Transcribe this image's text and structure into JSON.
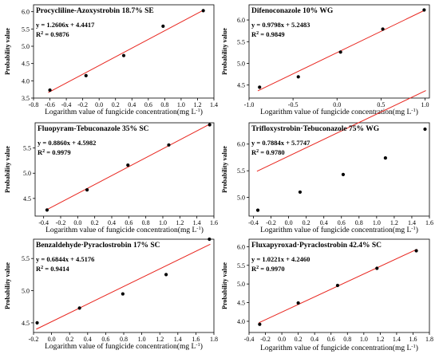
{
  "chart_data": [
    {
      "type": "scatter",
      "title": "Procycliline-Azoxystrobin 18.7% SE",
      "equation": "y = 1.2606x + 4.4417",
      "r2_label": "R",
      "r2_sup": "2",
      "r2_value": " = 0.9876",
      "xlabel": "Logarithm value of fungicide concentration(mg L",
      "xlabel_sup": "-1",
      "xlabel_end": ")",
      "ylabel": "Probability value",
      "xlim": [
        -0.8,
        1.4
      ],
      "ylim": [
        3.5,
        6.2
      ],
      "xticks": [
        "-0.8",
        "-0.6",
        "-0.4",
        "-0.2",
        "0.0",
        "0.2",
        "0.4",
        "0.6",
        "0.8",
        "1.0",
        "1.2",
        "1.4"
      ],
      "yticks": [
        "3.5",
        "4.0",
        "4.5",
        "5.0",
        "5.5",
        "6.0"
      ],
      "x": [
        -0.6,
        -0.16,
        0.3,
        0.78,
        1.27
      ],
      "y": [
        3.73,
        4.15,
        4.73,
        5.58,
        6.03
      ],
      "fit": {
        "slope": 1.2606,
        "intercept": 4.4417,
        "x_range": [
          -0.62,
          1.28
        ]
      }
    },
    {
      "type": "scatter",
      "title": "Difenoconazole 10% WG",
      "equation": "y = 0.9798x + 5.2483",
      "r2_label": "R",
      "r2_sup": "2",
      "r2_value": " = 0.9849",
      "xlabel": "Logarithm value of fungicide concentration(mg L",
      "xlabel_sup": "-1",
      "xlabel_end": ")",
      "ylabel": "Probability value",
      "xlim": [
        -1.0,
        1.05
      ],
      "ylim": [
        4.2,
        6.35
      ],
      "xticks": [
        "-1.0",
        "-0.5",
        "0.0",
        "0.5",
        "1.0"
      ],
      "yticks": [
        "4.5",
        "5.0",
        "5.5",
        "6.0"
      ],
      "x": [
        -0.88,
        -0.44,
        0.04,
        0.52,
        0.99
      ],
      "y": [
        4.45,
        4.69,
        5.26,
        5.79,
        6.23
      ],
      "fit": {
        "slope": 0.9798,
        "intercept": 5.2483,
        "x_range": [
          -0.9,
          1.0
        ]
      }
    },
    {
      "type": "scatter",
      "title": "Fluopyram-Tebuconazole 35% SC",
      "equation": "y = 0.8860x + 4.5982",
      "r2_label": "R",
      "r2_sup": "2",
      "r2_value": " = 0.9979",
      "xlabel": "Logarithm value of fungicide concentration(mg L",
      "xlabel_sup": "-1",
      "xlabel_end": ")",
      "ylabel": "Probability value",
      "xlim": [
        -0.5,
        1.6
      ],
      "ylim": [
        4.15,
        6.0
      ],
      "xticks": [
        "-0.4",
        "-0.2",
        "0.0",
        "0.2",
        "0.4",
        "0.6",
        "0.8",
        "1.0",
        "1.2",
        "1.4",
        "1.6"
      ],
      "yticks": [
        "4.5",
        "5.0",
        "5.5"
      ],
      "x": [
        -0.36,
        0.11,
        0.59,
        1.07,
        1.55
      ],
      "y": [
        4.27,
        4.67,
        5.16,
        5.56,
        5.96
      ],
      "fit": {
        "slope": 0.886,
        "intercept": 4.5982,
        "x_range": [
          -0.36,
          1.56
        ]
      }
    },
    {
      "type": "scatter",
      "title": "Trifloxystrobin·Tebuconazole 75% WG",
      "equation": "y = 0.7884x + 5.7747",
      "r2_label": "R",
      "r2_sup": "2",
      "r2_value": " = 0.9780",
      "xlabel": "Logarithm value of fungicide concentration(mg L",
      "xlabel_sup": "-1",
      "xlabel_end": ")",
      "ylabel": "Probability value",
      "xlim": [
        -0.45,
        1.6
      ],
      "ylim": [
        4.65,
        6.4
      ],
      "xticks": [
        "-0.4",
        "-0.2",
        "0.0",
        "0.2",
        "0.4",
        "0.6",
        "0.8",
        "1.0",
        "1.2",
        "1.4",
        "1.6"
      ],
      "yticks": [
        "5.0",
        "5.5",
        "6.0"
      ],
      "x": [
        -0.35,
        0.13,
        0.62,
        1.1,
        1.55
      ],
      "y": [
        4.76,
        5.1,
        5.43,
        5.74,
        6.28
      ],
      "fit": {
        "slope": 0.7884,
        "intercept": 5.7747,
        "x_range": [
          -0.36,
          1.56
        ]
      }
    },
    {
      "type": "scatter",
      "title": "Benzaldehyde·Pyraclostrobin 17% SC",
      "equation": "y = 0.6844x + 4.5176",
      "r2_label": "R",
      "r2_sup": "2",
      "r2_value": " = 0.9414",
      "xlabel": "Logarithm value of fungicide concentration(mg L",
      "xlabel_sup": "-1",
      "xlabel_end": ")",
      "ylabel": "Probability value",
      "xlim": [
        -0.2,
        1.8
      ],
      "ylim": [
        4.35,
        5.8
      ],
      "xticks": [
        "-0.2",
        "0.0",
        "0.2",
        "0.4",
        "0.6",
        "0.8",
        "1.0",
        "1.2",
        "1.4",
        "1.6",
        "1.8"
      ],
      "yticks": [
        "4.5",
        "5.0",
        "5.5"
      ],
      "x": [
        -0.16,
        0.31,
        0.79,
        1.27,
        1.75
      ],
      "y": [
        4.5,
        4.73,
        4.95,
        5.25,
        5.8
      ],
      "fit": {
        "slope": 0.6844,
        "intercept": 4.5176,
        "x_range": [
          -0.17,
          1.76
        ]
      }
    },
    {
      "type": "scatter",
      "title": "Fluxapyroxad·Pyraclostrobin 42.4% SC",
      "equation": "y = 1.0221x + 4.2460",
      "r2_label": "R",
      "r2_sup": "2",
      "r2_value": " = 0.9970",
      "xlabel": "Logarithm value of fungicide concentration(mg L",
      "xlabel_sup": "-1",
      "xlabel_end": ")",
      "ylabel": "Probability value",
      "xlim": [
        -0.4,
        1.8
      ],
      "ylim": [
        3.7,
        6.2
      ],
      "xticks": [
        "-0.4",
        "-0.2",
        "0.0",
        "0.2",
        "0.4",
        "0.6",
        "0.8",
        "1.0",
        "1.2",
        "1.4",
        "1.6",
        "1.8"
      ],
      "yticks": [
        "4.0",
        "4.5",
        "5.0",
        "5.5",
        "6.0"
      ],
      "x": [
        -0.27,
        0.2,
        0.68,
        1.16,
        1.64
      ],
      "y": [
        3.92,
        4.49,
        4.96,
        5.42,
        5.89
      ],
      "fit": {
        "slope": 1.0221,
        "intercept": 4.246,
        "x_range": [
          -0.28,
          1.65
        ]
      }
    }
  ],
  "colors": {
    "axis": "#000000",
    "point": "#000000",
    "fit_line": "#e8261f"
  }
}
